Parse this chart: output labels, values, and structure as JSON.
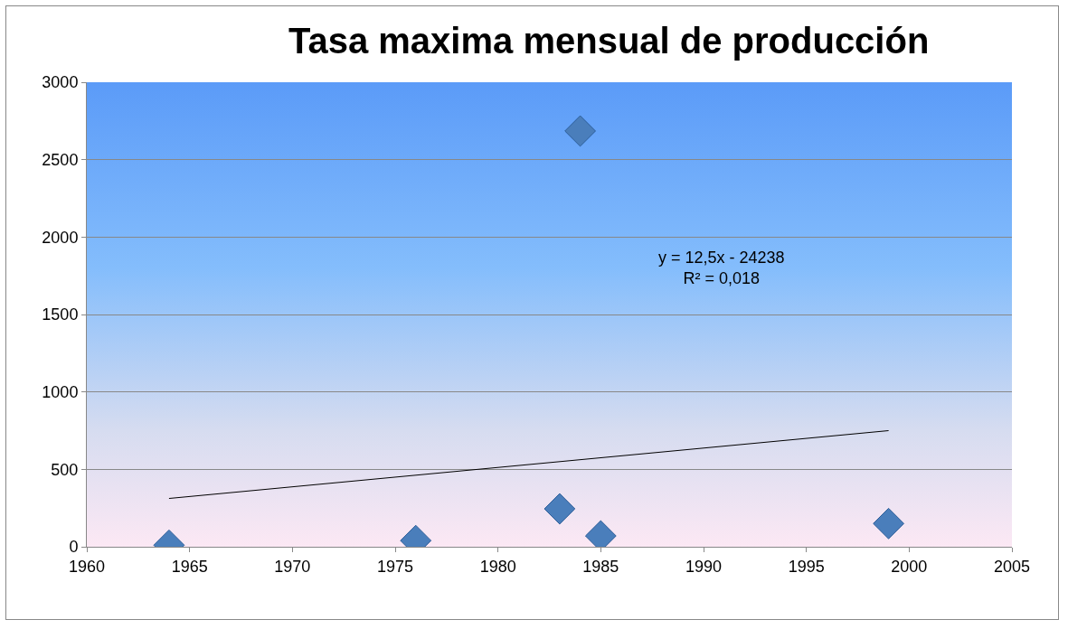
{
  "chart_data": {
    "type": "scatter",
    "title": "Tasa maxima mensual de producción",
    "x": [
      1964,
      1976,
      1983,
      1984,
      1985,
      1999
    ],
    "series": [
      {
        "color": "#4a7ebb",
        "values": [
          10,
          40,
          245,
          2685,
          70,
          150
        ]
      },
      {
        "type": "line",
        "color": "#000000",
        "x": [
          1964,
          1999
        ],
        "values": [
          312,
          750
        ],
        "marker": "none"
      }
    ],
    "xlim": [
      1960,
      2005
    ],
    "xticks": [
      1960,
      1965,
      1970,
      1975,
      1980,
      1985,
      1990,
      1995,
      2000,
      2005
    ],
    "ylim": [
      0,
      3000
    ],
    "yticks": [
      0,
      500,
      1000,
      1500,
      2000,
      2500,
      3000
    ],
    "grid": "y",
    "marker": "diamond",
    "annotations": [
      "y = 12,5x - 24238\nR² = 0,018"
    ]
  }
}
